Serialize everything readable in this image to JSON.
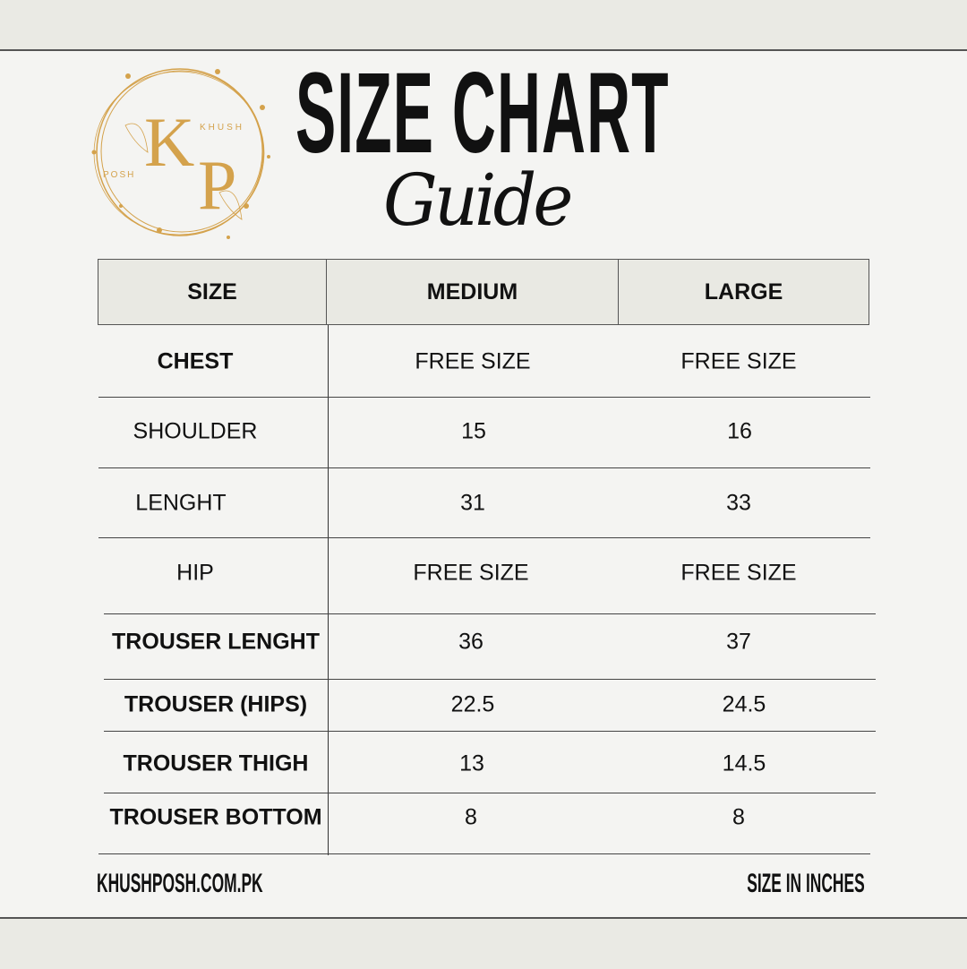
{
  "logo": {
    "brand_top": "KHUSH",
    "brand_bottom": "POSH",
    "monogram": "KP",
    "colors": {
      "gold": "#d4a24c"
    }
  },
  "title": "SIZE CHART",
  "subtitle": "Guide",
  "table": {
    "headers": [
      "SIZE",
      "MEDIUM",
      "LARGE"
    ],
    "rows": [
      {
        "label": "CHEST",
        "medium": "FREE SIZE",
        "large": "FREE SIZE"
      },
      {
        "label": "SHOULDER",
        "medium": "15",
        "large": "16"
      },
      {
        "label": "LENGHT",
        "medium": "31",
        "large": "33"
      },
      {
        "label": "HIP",
        "medium": "FREE SIZE",
        "large": "FREE SIZE"
      },
      {
        "label": "TROUSER LENGHT",
        "medium": "36",
        "large": "37"
      },
      {
        "label": "TROUSER (HIPS)",
        "medium": "22.5",
        "large": "24.5"
      },
      {
        "label": "TROUSER THIGH",
        "medium": "13",
        "large": "14.5"
      },
      {
        "label": "TROUSER BOTTOM",
        "medium": "8",
        "large": "8"
      }
    ]
  },
  "footer": {
    "website": "KHUSHPOSH.COM.PK",
    "unit_note": "SIZE IN INCHES"
  }
}
